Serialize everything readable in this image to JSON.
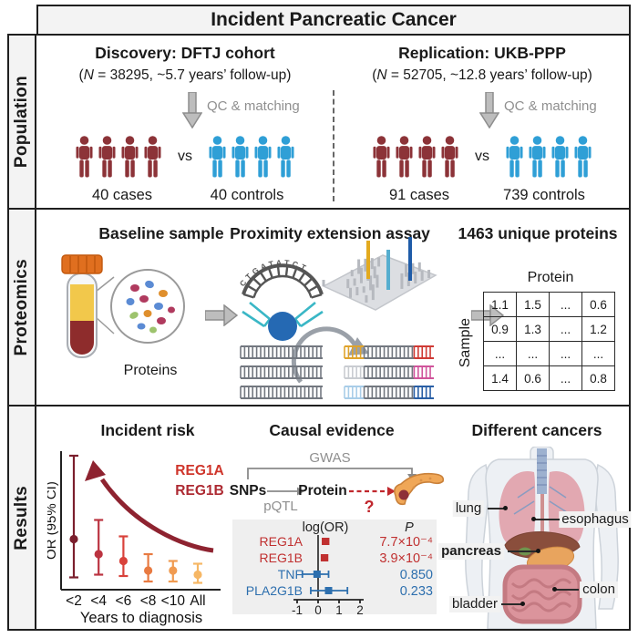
{
  "title": "Incident Pancreatic Cancer",
  "sidebar": {
    "population": "Population",
    "proteomics": "Proteomics",
    "results": "Results"
  },
  "colors": {
    "case_red": "#8c3338",
    "control_blue": "#2f9fd6",
    "gene_red": "#cf352b",
    "mr_blue": "#2d6fae",
    "trend_arrow_red": "#8e2330"
  },
  "population": {
    "qc_label": "QC & matching",
    "vs": "vs",
    "discovery": {
      "title": "Discovery: DFTJ cohort",
      "subtitle": {
        "open": "(",
        "n": "N",
        "rest": " = 38295, ~5.7 years’ follow-up)"
      },
      "cases": {
        "count": 4,
        "color": "#8c3338",
        "label": "40 cases"
      },
      "controls": {
        "count": 4,
        "color": "#2f9fd6",
        "label": "40 controls"
      }
    },
    "replication": {
      "title": "Replication: UKB-PPP",
      "subtitle": {
        "open": "(",
        "n": "N",
        "rest": " = 52705, ~12.8 years’ follow-up)"
      },
      "cases": {
        "count": 4,
        "color": "#8c3338",
        "label": "91 cases"
      },
      "controls": {
        "count": 4,
        "color": "#2f9fd6",
        "label": "739 controls"
      }
    }
  },
  "proteomics": {
    "baseline_title": "Baseline sample",
    "assay_title": "Proximity extension assay",
    "unique_title": "1463 unique proteins",
    "proteins_label": "Proteins",
    "dna_letters": "CTGATATCT",
    "matrix": {
      "col_header": "Protein",
      "row_header": "Sample",
      "cells": [
        [
          "1.1",
          "1.5",
          "...",
          "0.6"
        ],
        [
          "0.9",
          "1.3",
          "...",
          "1.2"
        ],
        [
          "...",
          "...",
          "...",
          "..."
        ],
        [
          "1.4",
          "0.6",
          "...",
          "0.8"
        ]
      ]
    }
  },
  "results": {
    "incident": {
      "title": "Incident risk",
      "genes": [
        "REG1A",
        "REG1B"
      ]
    },
    "causal": {
      "title": "Causal evidence",
      "gwas": "GWAS",
      "snps": "SNPs",
      "protein": "Protein",
      "pqtl": "pQTL",
      "question": "?"
    },
    "cancers": {
      "title": "Different cancers",
      "organs": [
        "lung",
        "esophagus",
        "pancreas",
        "colon",
        "bladder"
      ]
    }
  },
  "chart_data": [
    {
      "type": "scatter",
      "subtype": "errorbar",
      "title": "Incident risk",
      "ylabel": "OR (95% CI)",
      "xlabel": "Years to diagnosis",
      "categories": [
        "<2",
        "<4",
        "<6",
        "<8",
        "<10",
        "All"
      ],
      "or": [
        3.7,
        2.6,
        2.1,
        1.4,
        1.4,
        1.1
      ],
      "ci_low": [
        0.9,
        1.1,
        1.0,
        0.6,
        0.6,
        0.5
      ],
      "ci_high": [
        9.8,
        5.1,
        3.9,
        2.6,
        2.1,
        1.9
      ],
      "point_colors": [
        "#7b1f2d",
        "#bb3340",
        "#d9423b",
        "#e87a41",
        "#f09b51",
        "#f6b765"
      ],
      "ylim_note_units": "relative (axis unlabeled)"
    },
    {
      "type": "scatter",
      "subtype": "forest",
      "header": "log(OR)",
      "p_header": "P",
      "xticks": [
        -1,
        0,
        1,
        2
      ],
      "rows": [
        {
          "name": "REG1A",
          "est": 0.35,
          "lo": 0.22,
          "hi": 0.5,
          "p": "7.7×10⁻⁴",
          "color": "#c03030"
        },
        {
          "name": "REG1B",
          "est": 0.3,
          "lo": 0.18,
          "hi": 0.45,
          "p": "3.9×10⁻⁴",
          "color": "#c03030"
        },
        {
          "name": "TNF",
          "est": -0.05,
          "lo": -0.75,
          "hi": 0.5,
          "p": "0.850",
          "color": "#2d6fae"
        },
        {
          "name": "PLA2G1B",
          "est": 0.5,
          "lo": -0.35,
          "hi": 1.4,
          "p": "0.233",
          "color": "#2d6fae"
        }
      ]
    }
  ]
}
